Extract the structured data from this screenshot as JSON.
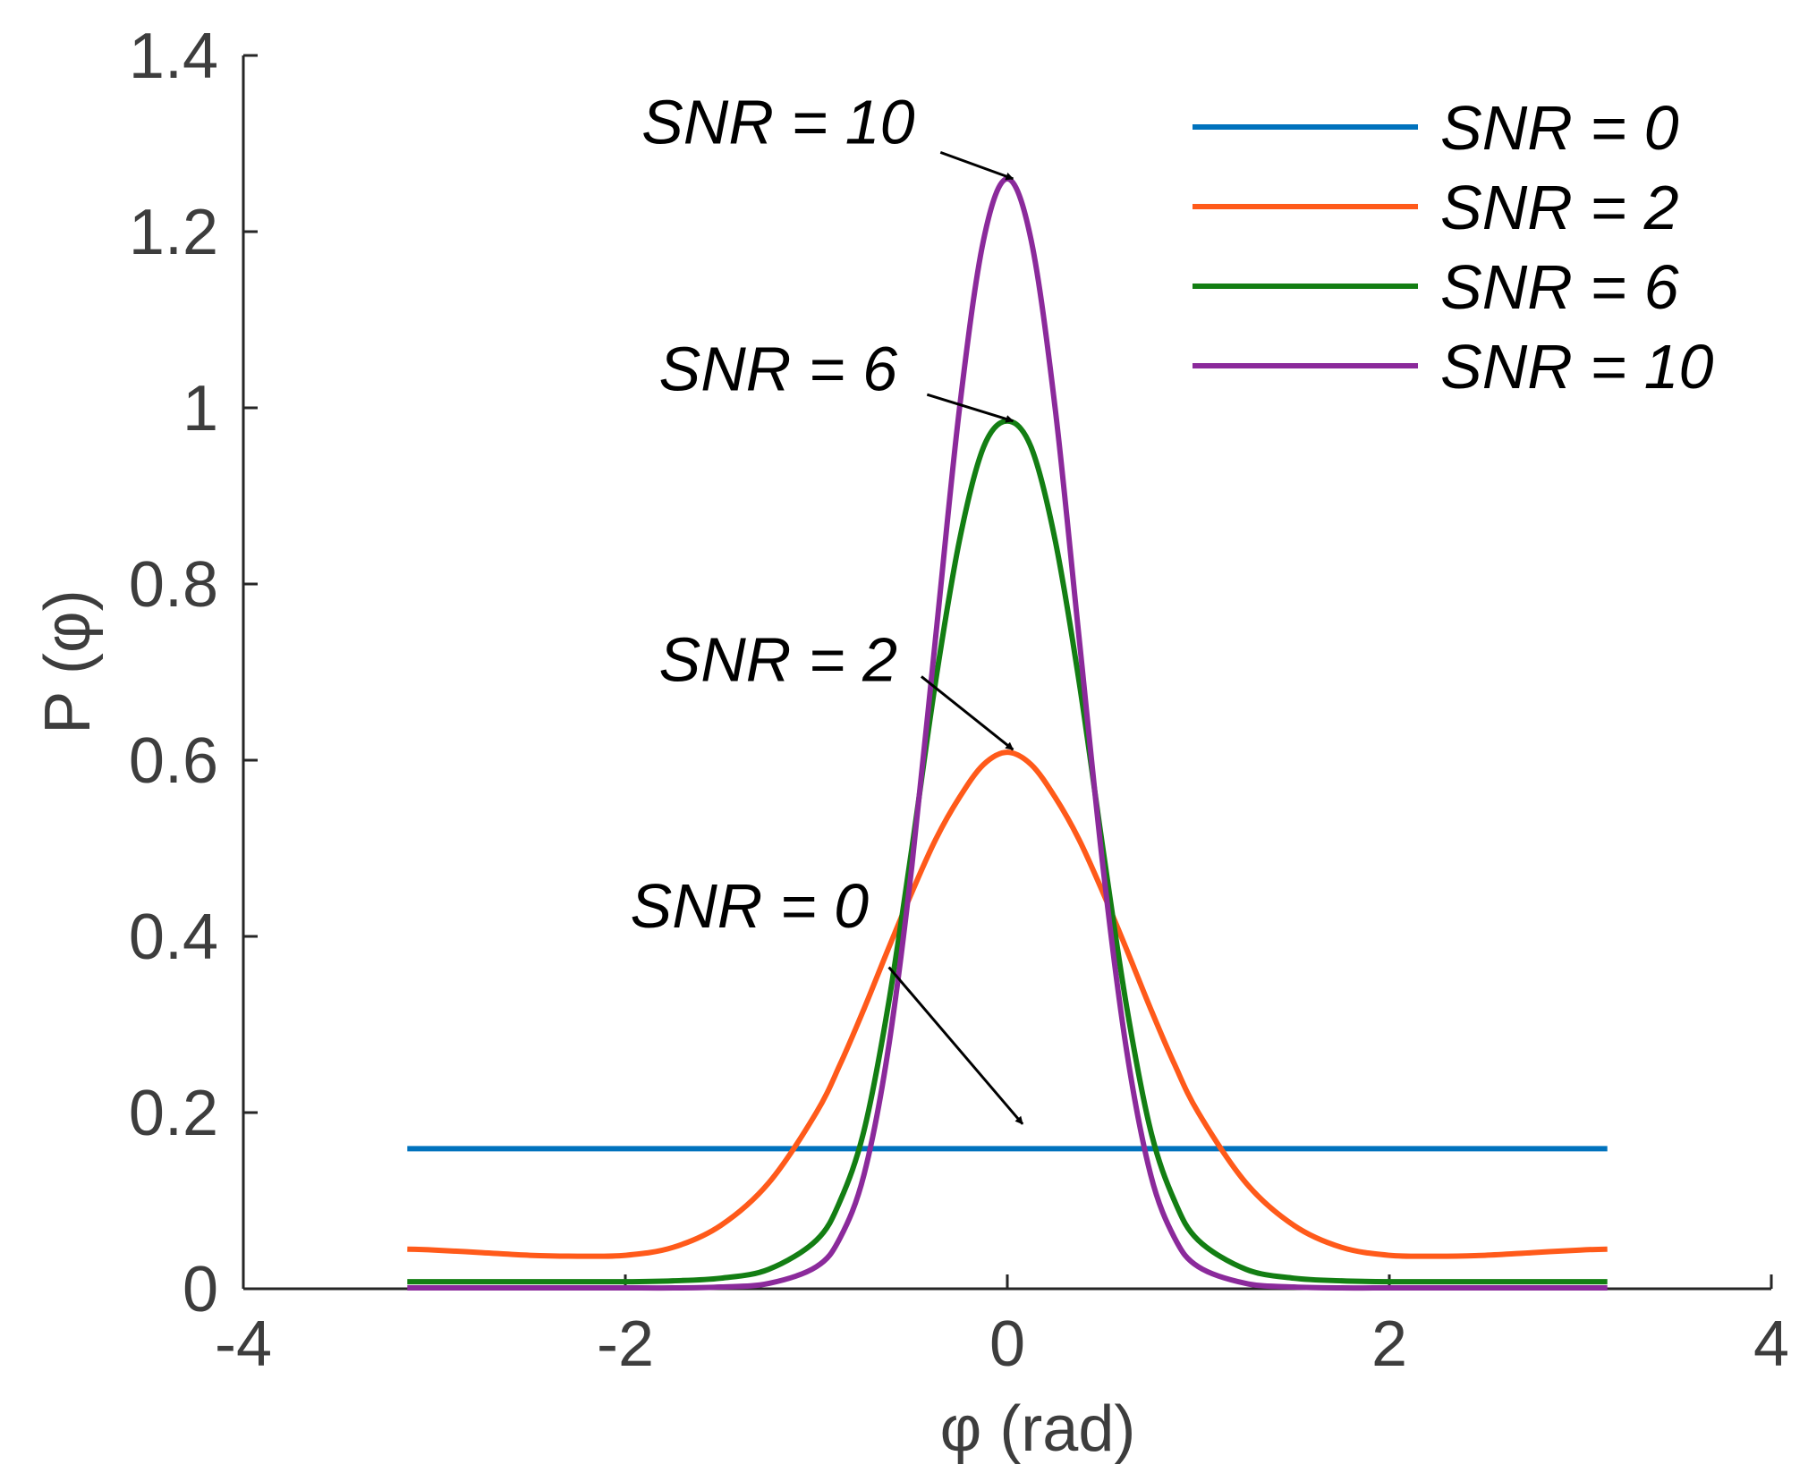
{
  "chart_data": {
    "type": "line",
    "title": "",
    "xlabel": "φ (rad)",
    "ylabel": "P (φ)",
    "xlim": [
      -4,
      4
    ],
    "ylim": [
      0,
      1.4
    ],
    "xticks": [
      -4,
      -2,
      0,
      2,
      4
    ],
    "xtick_labels": [
      "-4",
      "-2",
      "0",
      "2",
      "4"
    ],
    "yticks": [
      0,
      0.2,
      0.4,
      0.6,
      0.8,
      1,
      1.2,
      1.4
    ],
    "ytick_labels": [
      "0",
      "0.2",
      "0.4",
      "0.6",
      "0.8",
      "1",
      "1.2",
      "1.4"
    ],
    "grid": false,
    "legend_position": "top-right",
    "x": [
      -3.1416,
      -3.0,
      -2.75,
      -2.5,
      -2.25,
      -2.0,
      -1.75,
      -1.5,
      -1.25,
      -1.0,
      -0.875,
      -0.75,
      -0.625,
      -0.5,
      -0.375,
      -0.25,
      -0.125,
      0.0,
      0.125,
      0.25,
      0.375,
      0.5,
      0.625,
      0.75,
      0.875,
      1.0,
      1.25,
      1.5,
      1.75,
      2.0,
      2.25,
      2.5,
      2.75,
      3.0,
      3.1416
    ],
    "series": [
      {
        "name": "SNR = 0",
        "color": "#0072bd",
        "values": [
          0.159,
          0.159,
          0.159,
          0.159,
          0.159,
          0.159,
          0.159,
          0.159,
          0.159,
          0.159,
          0.159,
          0.159,
          0.159,
          0.159,
          0.159,
          0.159,
          0.159,
          0.159,
          0.159,
          0.159,
          0.159,
          0.159,
          0.159,
          0.159,
          0.159,
          0.159,
          0.159,
          0.159,
          0.159,
          0.159,
          0.159,
          0.159,
          0.159,
          0.159,
          0.159
        ]
      },
      {
        "name": "SNR = 2",
        "color": "#ff5a1a",
        "values": [
          0.045,
          0.044,
          0.041,
          0.038,
          0.037,
          0.038,
          0.047,
          0.072,
          0.12,
          0.2,
          0.255,
          0.318,
          0.385,
          0.45,
          0.51,
          0.558,
          0.595,
          0.609,
          0.595,
          0.558,
          0.51,
          0.45,
          0.385,
          0.318,
          0.255,
          0.2,
          0.12,
          0.072,
          0.047,
          0.038,
          0.037,
          0.038,
          0.041,
          0.044,
          0.045
        ]
      },
      {
        "name": "SNR = 6",
        "color": "#137e13",
        "values": [
          0.008,
          0.008,
          0.008,
          0.008,
          0.008,
          0.008,
          0.009,
          0.012,
          0.022,
          0.055,
          0.1,
          0.18,
          0.32,
          0.5,
          0.69,
          0.85,
          0.955,
          0.985,
          0.955,
          0.85,
          0.69,
          0.5,
          0.32,
          0.18,
          0.1,
          0.055,
          0.022,
          0.012,
          0.009,
          0.008,
          0.008,
          0.008,
          0.008,
          0.008,
          0.008
        ]
      },
      {
        "name": "SNR = 10",
        "color": "#8b2a9b",
        "values": [
          0.001,
          0.001,
          0.001,
          0.001,
          0.001,
          0.001,
          0.001,
          0.002,
          0.006,
          0.025,
          0.058,
          0.13,
          0.27,
          0.48,
          0.74,
          1.0,
          1.19,
          1.26,
          1.19,
          1.0,
          0.74,
          0.48,
          0.27,
          0.13,
          0.058,
          0.025,
          0.006,
          0.002,
          0.001,
          0.001,
          0.001,
          0.001,
          0.001,
          0.001,
          0.001
        ]
      }
    ],
    "annotations": [
      {
        "text": "SNR = 10",
        "text_x": -1.2,
        "text_y": 1.3,
        "arrow_from": [
          -0.35,
          1.29
        ],
        "arrow_to": [
          0.03,
          1.26
        ]
      },
      {
        "text": "SNR = 6",
        "text_x": -1.2,
        "text_y": 1.02,
        "arrow_from": [
          -0.42,
          1.015
        ],
        "arrow_to": [
          0.03,
          0.985
        ]
      },
      {
        "text": "SNR = 2",
        "text_x": -1.2,
        "text_y": 0.69,
        "arrow_from": [
          -0.45,
          0.695
        ],
        "arrow_to": [
          0.03,
          0.612
        ]
      },
      {
        "text": "SNR = 0",
        "text_x": -1.35,
        "text_y": 0.41,
        "arrow_from": [
          -0.62,
          0.365
        ],
        "arrow_to": [
          0.08,
          0.187
        ]
      }
    ]
  }
}
